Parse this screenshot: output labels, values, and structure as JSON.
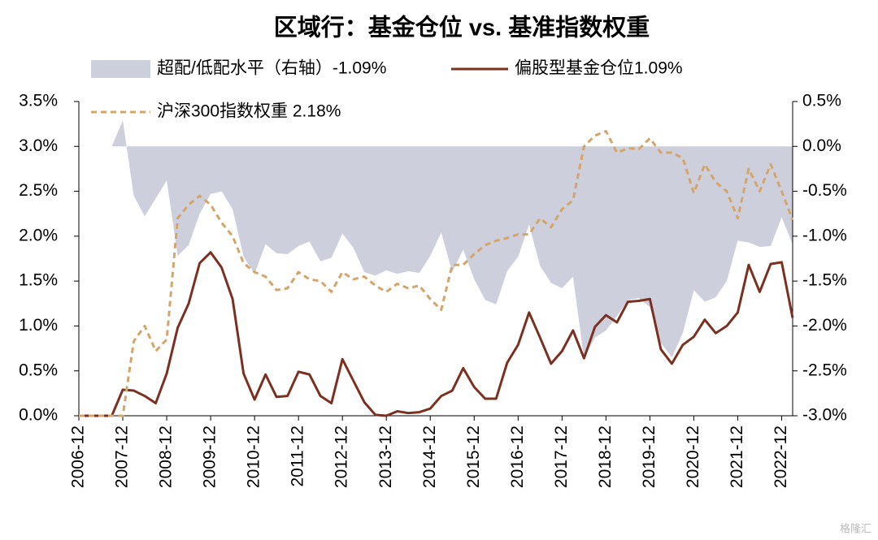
{
  "chart_data": {
    "type": "line",
    "title": "区域行：基金仓位 vs. 基准指数权重",
    "categories": [
      "2006-12",
      null,
      null,
      null,
      "2007-12",
      null,
      null,
      null,
      "2008-12",
      null,
      null,
      null,
      "2009-12",
      null,
      null,
      null,
      "2010-12",
      null,
      null,
      null,
      "2011-12",
      null,
      null,
      null,
      "2012-12",
      null,
      null,
      null,
      "2013-12",
      null,
      null,
      null,
      "2014-12",
      null,
      null,
      null,
      "2015-12",
      null,
      null,
      null,
      "2016-12",
      null,
      null,
      null,
      "2017-12",
      null,
      null,
      null,
      "2018-12",
      null,
      null,
      null,
      "2019-12",
      null,
      null,
      null,
      "2020-12",
      null,
      null,
      null,
      "2021-12",
      null,
      null,
      null,
      "2022-12",
      null
    ],
    "series": [
      {
        "name": "超配/低配水平（右轴）-1.09%",
        "color": "#cdd0dc",
        "kind": "area",
        "axis": "y2",
        "values": [
          0,
          0,
          0,
          0,
          0.29,
          -0.55,
          -0.78,
          -0.58,
          -0.38,
          -1.22,
          -1.1,
          -0.75,
          -0.53,
          -0.5,
          -0.7,
          -1.23,
          -1.42,
          -1.09,
          -1.19,
          -1.2,
          -1.11,
          -1.06,
          -1.28,
          -1.24,
          -0.97,
          -1.13,
          -1.4,
          -1.44,
          -1.38,
          -1.42,
          -1.39,
          -1.41,
          -1.22,
          -0.96,
          -1.4,
          -1.15,
          -1.48,
          -1.71,
          -1.76,
          -1.39,
          -1.23,
          -0.87,
          -1.33,
          -1.52,
          -1.58,
          -1.45,
          -2.36,
          -2.13,
          -2.05,
          -1.89,
          -1.71,
          -1.69,
          -1.79,
          -2.19,
          -2.35,
          -2.08,
          -1.6,
          -1.73,
          -1.68,
          -1.5,
          -1.05,
          -1.07,
          -1.12,
          -1.11,
          -0.79,
          -1.09
        ]
      },
      {
        "name": "偏股型基金仓位1.09%",
        "color": "#7b3020",
        "kind": "line",
        "values": [
          0,
          0,
          0,
          0,
          0.29,
          0.28,
          0.22,
          0.14,
          0.47,
          0.98,
          1.25,
          1.7,
          1.82,
          1.65,
          1.3,
          0.47,
          0.18,
          0.46,
          0.21,
          0.22,
          0.49,
          0.46,
          0.22,
          0.14,
          0.63,
          0.39,
          0.15,
          0.01,
          0.0,
          0.05,
          0.03,
          0.04,
          0.08,
          0.22,
          0.28,
          0.53,
          0.32,
          0.19,
          0.19,
          0.59,
          0.79,
          1.15,
          0.87,
          0.58,
          0.72,
          0.95,
          0.64,
          0.99,
          1.12,
          1.04,
          1.27,
          1.28,
          1.3,
          0.74,
          0.58,
          0.79,
          0.88,
          1.07,
          0.92,
          1.0,
          1.15,
          1.68,
          1.38,
          1.69,
          1.71,
          1.09
        ]
      },
      {
        "name": "沪深300指数权重  2.18%",
        "color": "#d4a56a",
        "kind": "line",
        "dashed": true,
        "values": [
          0,
          0,
          0,
          0,
          0,
          0.83,
          1.0,
          0.72,
          0.85,
          2.2,
          2.35,
          2.45,
          2.35,
          2.15,
          2.0,
          1.7,
          1.6,
          1.55,
          1.4,
          1.42,
          1.6,
          1.52,
          1.5,
          1.38,
          1.6,
          1.52,
          1.55,
          1.45,
          1.38,
          1.47,
          1.42,
          1.45,
          1.3,
          1.18,
          1.68,
          1.68,
          1.8,
          1.9,
          1.95,
          1.98,
          2.02,
          2.02,
          2.2,
          2.1,
          2.3,
          2.4,
          3.0,
          3.12,
          3.17,
          2.93,
          2.98,
          2.97,
          3.09,
          2.93,
          2.93,
          2.87,
          2.48,
          2.8,
          2.6,
          2.5,
          2.2,
          2.75,
          2.5,
          2.8,
          2.5,
          2.18
        ]
      }
    ],
    "ylim": [
      0,
      3.5
    ],
    "yticks": [
      {
        "value": 0,
        "label": "0.0%"
      },
      {
        "value": 0.5,
        "label": "0.5%"
      },
      {
        "value": 1,
        "label": "1.0%"
      },
      {
        "value": 1.5,
        "label": "1.5%"
      },
      {
        "value": 2,
        "label": "2.0%"
      },
      {
        "value": 2.5,
        "label": "2.5%"
      },
      {
        "value": 3,
        "label": "3.0%"
      },
      {
        "value": 3.5,
        "label": "3.5%"
      }
    ],
    "y2lim": [
      -3,
      0.5
    ],
    "y2ticks": [
      {
        "value": -3,
        "label": "-3.0%"
      },
      {
        "value": -2.5,
        "label": "-2.5%"
      },
      {
        "value": -2,
        "label": "-2.0%"
      },
      {
        "value": -1.5,
        "label": "-1.5%"
      },
      {
        "value": -1,
        "label": "-1.0%"
      },
      {
        "value": -0.5,
        "label": "-0.5%"
      },
      {
        "value": 0,
        "label": "0.0%"
      },
      {
        "value": 0.5,
        "label": "0.5%"
      }
    ],
    "watermark": "格隆汇"
  }
}
